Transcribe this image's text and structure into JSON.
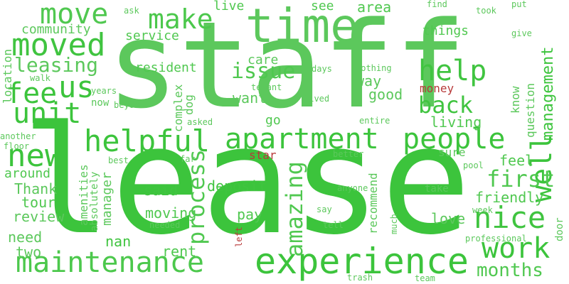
{
  "words": [
    {
      "text": "staff",
      "color": "#5cc85c",
      "rot": 0
    },
    {
      "text": "lease",
      "color": "#3cc43c",
      "rot": 0
    },
    {
      "text": "time",
      "color": "#5cc85c",
      "rot": 0
    },
    {
      "text": "experience",
      "color": "#3cc43c",
      "rot": 0
    },
    {
      "text": "maintenance",
      "color": "#4cc84c",
      "rot": 0
    },
    {
      "text": "apartment",
      "color": "#3cc43c",
      "rot": 0
    },
    {
      "text": "people",
      "color": "#3cc43c",
      "rot": 0
    },
    {
      "text": "helpful",
      "color": "#3cc43c",
      "rot": 0
    },
    {
      "text": "move",
      "color": "#50c850",
      "rot": 0
    },
    {
      "text": "moved",
      "color": "#40c440",
      "rot": 0
    },
    {
      "text": "make",
      "color": "#4cc84c",
      "rot": 0
    },
    {
      "text": "unit",
      "color": "#3cc43c",
      "rot": 0
    },
    {
      "text": "new",
      "color": "#3cc43c",
      "rot": 0
    },
    {
      "text": "us",
      "color": "#3cc43c",
      "rot": 0
    },
    {
      "text": "fee",
      "color": "#3cc43c",
      "rot": 0
    },
    {
      "text": "help",
      "color": "#40c440",
      "rot": 0
    },
    {
      "text": "nice",
      "color": "#40c440",
      "rot": 0
    },
    {
      "text": "work",
      "color": "#3cc43c",
      "rot": 0
    },
    {
      "text": "well",
      "color": "#3cc43c",
      "rot": -90
    },
    {
      "text": "back",
      "color": "#40c440",
      "rot": 0
    },
    {
      "text": "first",
      "color": "#50c850",
      "rot": 0
    },
    {
      "text": "issue",
      "color": "#50c850",
      "rot": 0
    },
    {
      "text": "leasing",
      "color": "#5cc85c",
      "rot": 0
    },
    {
      "text": "process",
      "color": "#50c850",
      "rot": -90
    },
    {
      "text": "amazing",
      "color": "#50c850",
      "rot": -90
    },
    {
      "text": "months",
      "color": "#50c850",
      "rot": 0
    },
    {
      "text": "management",
      "color": "#3cc43c",
      "rot": -90
    },
    {
      "text": "community",
      "color": "#5cc85c",
      "rot": 0
    },
    {
      "text": "service",
      "color": "#50c850",
      "rot": 0
    },
    {
      "text": "resident",
      "color": "#50c850",
      "rot": 0
    },
    {
      "text": "care",
      "color": "#5cc85c",
      "rot": 0
    },
    {
      "text": "living",
      "color": "#50c850",
      "rot": 0
    },
    {
      "text": "feel",
      "color": "#50c850",
      "rot": 0
    },
    {
      "text": "friendly",
      "color": "#50c850",
      "rot": 0
    },
    {
      "text": "love",
      "color": "#5cc85c",
      "rot": 0
    },
    {
      "text": "deposit",
      "color": "#40c440",
      "rot": 0
    },
    {
      "text": "said",
      "color": "#40c440",
      "rot": 0
    },
    {
      "text": "moving",
      "color": "#50c850",
      "rot": 0
    },
    {
      "text": "pay",
      "color": "#50c850",
      "rot": 0
    },
    {
      "text": "rent",
      "color": "#50c850",
      "rot": 0
    },
    {
      "text": "nan",
      "color": "#40c440",
      "rot": 0
    },
    {
      "text": "need",
      "color": "#5cc85c",
      "rot": 0
    },
    {
      "text": "two",
      "color": "#5cc85c",
      "rot": 0
    },
    {
      "text": "review",
      "color": "#5cc85c",
      "rot": 0
    },
    {
      "text": "tour",
      "color": "#50c850",
      "rot": 0
    },
    {
      "text": "Thank",
      "color": "#5cc85c",
      "rot": 0
    },
    {
      "text": "around",
      "color": "#50c850",
      "rot": 0
    },
    {
      "text": "want",
      "color": "#5cc85c",
      "rot": 0
    },
    {
      "text": "good",
      "color": "#5cc85c",
      "rot": 0
    },
    {
      "text": "way",
      "color": "#5cc85c",
      "rot": 0
    },
    {
      "text": "go",
      "color": "#50c850",
      "rot": 0
    },
    {
      "text": "area",
      "color": "#50c850",
      "rot": 0
    },
    {
      "text": "things",
      "color": "#50c850",
      "rot": 0
    },
    {
      "text": "see",
      "color": "#50c850",
      "rot": 0
    },
    {
      "text": "live",
      "color": "#50c850",
      "rot": 0
    },
    {
      "text": "money",
      "color": "#b83a3a",
      "rot": 0
    },
    {
      "text": "star",
      "color": "#b83a3a",
      "rot": 0
    },
    {
      "text": "dog",
      "color": "#5cc85c",
      "rot": -90
    },
    {
      "text": "complex",
      "color": "#5cc85c",
      "rot": -90
    },
    {
      "text": "manager",
      "color": "#5cc85c",
      "rot": -90
    },
    {
      "text": "amenities",
      "color": "#5cc85c",
      "rot": -90
    },
    {
      "text": "absolutely",
      "color": "#5cc85c",
      "rot": -90
    },
    {
      "text": "location",
      "color": "#5cc85c",
      "rot": -90
    },
    {
      "text": "recommend",
      "color": "#5cc85c",
      "rot": -90
    },
    {
      "text": "question",
      "color": "#5cc85c",
      "rot": -90
    },
    {
      "text": "know",
      "color": "#5cc85c",
      "rot": -90
    },
    {
      "text": "give",
      "color": "#5cc85c",
      "rot": 0
    },
    {
      "text": "find",
      "color": "#5cc85c",
      "rot": 0
    },
    {
      "text": "took",
      "color": "#5cc85c",
      "rot": 0
    },
    {
      "text": "put",
      "color": "#5cc85c",
      "rot": 0
    },
    {
      "text": "ask",
      "color": "#5cc85c",
      "rot": 0
    },
    {
      "text": "days",
      "color": "#5cc85c",
      "rot": 0
    },
    {
      "text": "nothing",
      "color": "#5cc85c",
      "rot": 0
    },
    {
      "text": "tenant",
      "color": "#5cc85c",
      "rot": 0
    },
    {
      "text": "lived",
      "color": "#5cc85c",
      "rot": 0
    },
    {
      "text": "walk",
      "color": "#5cc85c",
      "rot": 0
    },
    {
      "text": "years",
      "color": "#5cc85c",
      "rot": 0
    },
    {
      "text": "now",
      "color": "#5cc85c",
      "rot": 0
    },
    {
      "text": "beyond",
      "color": "#5cc85c",
      "rot": 0
    },
    {
      "text": "another",
      "color": "#5cc85c",
      "rot": 0
    },
    {
      "text": "floor",
      "color": "#5cc85c",
      "rot": 0
    },
    {
      "text": "asked",
      "color": "#5cc85c",
      "rot": 0
    },
    {
      "text": "entire",
      "color": "#5cc85c",
      "rot": 0
    },
    {
      "text": "best",
      "color": "#5cc85c",
      "rot": 0
    },
    {
      "text": "far",
      "color": "#5cc85c",
      "rot": 0
    },
    {
      "text": "better",
      "color": "#5cc85c",
      "rot": 0
    },
    {
      "text": "sure",
      "color": "#5cc85c",
      "rot": 0
    },
    {
      "text": "pool",
      "color": "#5cc85c",
      "rot": 0
    },
    {
      "text": "anyone",
      "color": "#5cc85c",
      "rot": 0
    },
    {
      "text": "take",
      "color": "#5cc85c",
      "rot": 0
    },
    {
      "text": "week",
      "color": "#5cc85c",
      "rot": 0
    },
    {
      "text": "say",
      "color": "#5cc85c",
      "rot": 0
    },
    {
      "text": "tell",
      "color": "#5cc85c",
      "rot": 0
    },
    {
      "text": "needed",
      "color": "#5cc85c",
      "rot": 0
    },
    {
      "text": "professional",
      "color": "#5cc85c",
      "rot": 0
    },
    {
      "text": "door",
      "color": "#5cc85c",
      "rot": -90
    },
    {
      "text": "left",
      "color": "#b83a3a",
      "rot": -90
    },
    {
      "text": "much",
      "color": "#5cc85c",
      "rot": -90
    },
    {
      "text": "trash",
      "color": "#5cc85c",
      "rot": 0
    },
    {
      "text": "team",
      "color": "#5cc85c",
      "rot": 0
    }
  ]
}
